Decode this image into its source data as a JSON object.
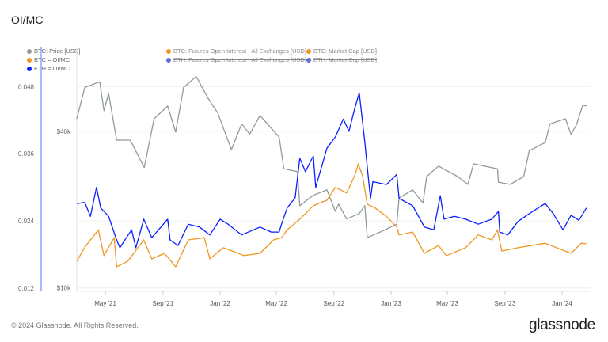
{
  "title": "OI/MC",
  "footer": "© 2024 Glassnode. All Rights Reserved.",
  "logo": "glassnode",
  "legend": [
    {
      "label": "BTC: Price [USD]",
      "color": "#8f9a9c",
      "active": true
    },
    {
      "label": "BTC: Futures Open Interest - All Exchanges [USD]",
      "color": "#f0961e",
      "active": false
    },
    {
      "label": "BTC: Market Cap [USD]",
      "color": "#f0961e",
      "active": false
    },
    {
      "label": "BTC = OI/MC",
      "color": "#f0961e",
      "active": true
    },
    {
      "label": "ETH: Futures Open Interest - All Exchanges [USD]",
      "color": "#5d6fe0",
      "active": false
    },
    {
      "label": "ETH: Market Cap [USD]",
      "color": "#5d6fe0",
      "active": false
    },
    {
      "label": "ETH = OI/MC",
      "color": "#0a1fff",
      "active": true
    }
  ],
  "chart_data": {
    "type": "line",
    "title": "OI/MC",
    "xlim": [
      "2021-03-01",
      "2024-02-24"
    ],
    "x_ticks": [
      {
        "date": "2021-05-01",
        "label": "May '21"
      },
      {
        "date": "2021-09-01",
        "label": "Sep '21"
      },
      {
        "date": "2022-01-01",
        "label": "Jan '22"
      },
      {
        "date": "2022-05-01",
        "label": "May '22"
      },
      {
        "date": "2022-09-01",
        "label": "Sep '22"
      },
      {
        "date": "2023-01-01",
        "label": "Jan '23"
      },
      {
        "date": "2023-05-01",
        "label": "May '23"
      },
      {
        "date": "2023-09-01",
        "label": "Sep '23"
      },
      {
        "date": "2024-01-01",
        "label": "Jan '24"
      }
    ],
    "y_left": {
      "scale": "linear",
      "ylim": [
        0.0114,
        0.055
      ],
      "ticks": [
        0.012,
        0.024,
        0.036,
        0.048
      ],
      "tick_labels": [
        "0.012",
        "0.024",
        "0.036",
        "0.048"
      ]
    },
    "y_right": {
      "scale": "log",
      "ylim": [
        9700,
        84000
      ],
      "ticks": [
        10000,
        40000
      ],
      "tick_labels": [
        "$10k",
        "$40k"
      ]
    },
    "grid": true,
    "legend_position": "top",
    "series": [
      {
        "name": "BTC: Price [USD]",
        "axis": "right",
        "color": "#8f9a9c",
        "points": [
          [
            "2021-03-01",
            44700
          ],
          [
            "2021-03-18",
            59000
          ],
          [
            "2021-04-19",
            62000
          ],
          [
            "2021-04-28",
            48000
          ],
          [
            "2021-05-08",
            56000
          ],
          [
            "2021-05-25",
            37000
          ],
          [
            "2021-06-23",
            37000
          ],
          [
            "2021-07-23",
            29000
          ],
          [
            "2021-08-13",
            44700
          ],
          [
            "2021-09-11",
            50000
          ],
          [
            "2021-09-28",
            39700
          ],
          [
            "2021-10-15",
            59000
          ],
          [
            "2021-11-11",
            65000
          ],
          [
            "2021-12-05",
            54000
          ],
          [
            "2021-12-27",
            47000
          ],
          [
            "2022-01-25",
            34000
          ],
          [
            "2022-02-16",
            42700
          ],
          [
            "2022-03-05",
            39000
          ],
          [
            "2022-03-27",
            46000
          ],
          [
            "2022-05-07",
            38000
          ],
          [
            "2022-05-17",
            28700
          ],
          [
            "2022-06-15",
            28000
          ],
          [
            "2022-06-20",
            20700
          ],
          [
            "2022-07-19",
            22700
          ],
          [
            "2022-08-17",
            23800
          ],
          [
            "2022-09-04",
            19700
          ],
          [
            "2022-09-11",
            21000
          ],
          [
            "2022-09-28",
            18400
          ],
          [
            "2022-10-25",
            19300
          ],
          [
            "2022-11-06",
            20700
          ],
          [
            "2022-11-11",
            15600
          ],
          [
            "2022-12-22",
            16800
          ],
          [
            "2023-01-13",
            17600
          ],
          [
            "2023-01-18",
            22200
          ],
          [
            "2023-02-16",
            23800
          ],
          [
            "2023-03-10",
            21200
          ],
          [
            "2023-03-18",
            26800
          ],
          [
            "2023-04-12",
            29400
          ],
          [
            "2023-05-23",
            26800
          ],
          [
            "2023-06-14",
            25000
          ],
          [
            "2023-06-26",
            30000
          ],
          [
            "2023-08-16",
            28700
          ],
          [
            "2023-08-18",
            25500
          ],
          [
            "2023-09-12",
            25000
          ],
          [
            "2023-10-11",
            26800
          ],
          [
            "2023-10-23",
            33700
          ],
          [
            "2023-11-26",
            36200
          ],
          [
            "2023-12-06",
            42700
          ],
          [
            "2024-01-08",
            44700
          ],
          [
            "2024-01-20",
            38900
          ],
          [
            "2024-02-01",
            42500
          ],
          [
            "2024-02-14",
            50500
          ],
          [
            "2024-02-22",
            50000
          ]
        ]
      },
      {
        "name": "BTC = OI/MC",
        "axis": "left",
        "color": "#f0961e",
        "points": [
          [
            "2021-03-01",
            0.0168
          ],
          [
            "2021-03-18",
            0.0193
          ],
          [
            "2021-04-16",
            0.0224
          ],
          [
            "2021-04-28",
            0.0178
          ],
          [
            "2021-05-20",
            0.021
          ],
          [
            "2021-05-25",
            0.0158
          ],
          [
            "2021-06-18",
            0.0168
          ],
          [
            "2021-07-22",
            0.0206
          ],
          [
            "2021-08-08",
            0.0172
          ],
          [
            "2021-09-04",
            0.0182
          ],
          [
            "2021-09-28",
            0.0158
          ],
          [
            "2021-10-25",
            0.0206
          ],
          [
            "2021-11-28",
            0.021
          ],
          [
            "2021-12-10",
            0.0172
          ],
          [
            "2022-01-08",
            0.0192
          ],
          [
            "2022-02-21",
            0.0178
          ],
          [
            "2022-03-27",
            0.0182
          ],
          [
            "2022-04-25",
            0.0206
          ],
          [
            "2022-05-12",
            0.021
          ],
          [
            "2022-05-24",
            0.0224
          ],
          [
            "2022-06-20",
            0.0243
          ],
          [
            "2022-07-19",
            0.0267
          ],
          [
            "2022-08-17",
            0.0277
          ],
          [
            "2022-09-04",
            0.03
          ],
          [
            "2022-09-28",
            0.029
          ],
          [
            "2022-10-15",
            0.032
          ],
          [
            "2022-10-23",
            0.0342
          ],
          [
            "2022-11-01",
            0.032
          ],
          [
            "2022-11-11",
            0.027
          ],
          [
            "2022-11-28",
            0.0263
          ],
          [
            "2022-12-22",
            0.0248
          ],
          [
            "2023-01-13",
            0.0229
          ],
          [
            "2023-01-18",
            0.0215
          ],
          [
            "2023-02-16",
            0.022
          ],
          [
            "2023-03-13",
            0.0182
          ],
          [
            "2023-04-12",
            0.0196
          ],
          [
            "2023-04-29",
            0.0178
          ],
          [
            "2023-06-09",
            0.0192
          ],
          [
            "2023-07-06",
            0.0215
          ],
          [
            "2023-08-04",
            0.0206
          ],
          [
            "2023-08-16",
            0.0224
          ],
          [
            "2023-08-25",
            0.0186
          ],
          [
            "2023-09-29",
            0.0192
          ],
          [
            "2023-11-26",
            0.02
          ],
          [
            "2024-01-20",
            0.0182
          ],
          [
            "2024-02-11",
            0.02
          ],
          [
            "2024-02-22",
            0.0199
          ]
        ]
      },
      {
        "name": "ETH = OI/MC",
        "axis": "left",
        "color": "#0a1fff",
        "points": [
          [
            "2021-03-01",
            0.0271
          ],
          [
            "2021-03-18",
            0.0273
          ],
          [
            "2021-03-30",
            0.0248
          ],
          [
            "2021-04-12",
            0.03
          ],
          [
            "2021-04-21",
            0.0263
          ],
          [
            "2021-05-08",
            0.0248
          ],
          [
            "2021-05-25",
            0.0206
          ],
          [
            "2021-06-01",
            0.0192
          ],
          [
            "2021-06-26",
            0.0224
          ],
          [
            "2021-07-05",
            0.0192
          ],
          [
            "2021-07-22",
            0.0243
          ],
          [
            "2021-08-08",
            0.021
          ],
          [
            "2021-09-11",
            0.0243
          ],
          [
            "2021-09-16",
            0.0206
          ],
          [
            "2021-10-03",
            0.0196
          ],
          [
            "2021-10-25",
            0.0234
          ],
          [
            "2021-11-18",
            0.0229
          ],
          [
            "2021-12-10",
            0.0215
          ],
          [
            "2022-01-01",
            0.0243
          ],
          [
            "2022-01-18",
            0.0234
          ],
          [
            "2022-02-16",
            0.0215
          ],
          [
            "2022-03-27",
            0.0229
          ],
          [
            "2022-04-20",
            0.022
          ],
          [
            "2022-05-07",
            0.022
          ],
          [
            "2022-05-12",
            0.0234
          ],
          [
            "2022-05-24",
            0.0263
          ],
          [
            "2022-06-10",
            0.0281
          ],
          [
            "2022-06-20",
            0.0352
          ],
          [
            "2022-07-02",
            0.0328
          ],
          [
            "2022-07-19",
            0.0356
          ],
          [
            "2022-07-24",
            0.03
          ],
          [
            "2022-08-17",
            0.037
          ],
          [
            "2022-09-04",
            0.039
          ],
          [
            "2022-09-21",
            0.0422
          ],
          [
            "2022-10-03",
            0.04
          ],
          [
            "2022-10-15",
            0.044
          ],
          [
            "2022-10-25",
            0.0469
          ],
          [
            "2022-11-06",
            0.038
          ],
          [
            "2022-11-11",
            0.0337
          ],
          [
            "2022-11-18",
            0.028
          ],
          [
            "2022-11-23",
            0.031
          ],
          [
            "2022-12-22",
            0.0305
          ],
          [
            "2023-01-13",
            0.0323
          ],
          [
            "2023-01-18",
            0.028
          ],
          [
            "2023-02-16",
            0.0267
          ],
          [
            "2023-03-13",
            0.0229
          ],
          [
            "2023-04-02",
            0.0224
          ],
          [
            "2023-04-16",
            0.0285
          ],
          [
            "2023-04-24",
            0.0243
          ],
          [
            "2023-05-16",
            0.0248
          ],
          [
            "2023-06-09",
            0.0243
          ],
          [
            "2023-07-06",
            0.0234
          ],
          [
            "2023-08-04",
            0.0243
          ],
          [
            "2023-08-18",
            0.0257
          ],
          [
            "2023-08-21",
            0.022
          ],
          [
            "2023-09-07",
            0.0215
          ],
          [
            "2023-09-29",
            0.0239
          ],
          [
            "2023-10-23",
            0.0253
          ],
          [
            "2023-11-26",
            0.0271
          ],
          [
            "2023-12-13",
            0.0253
          ],
          [
            "2024-01-03",
            0.0224
          ],
          [
            "2024-01-20",
            0.025
          ],
          [
            "2024-02-06",
            0.0241
          ],
          [
            "2024-02-22",
            0.0263
          ]
        ]
      }
    ]
  }
}
